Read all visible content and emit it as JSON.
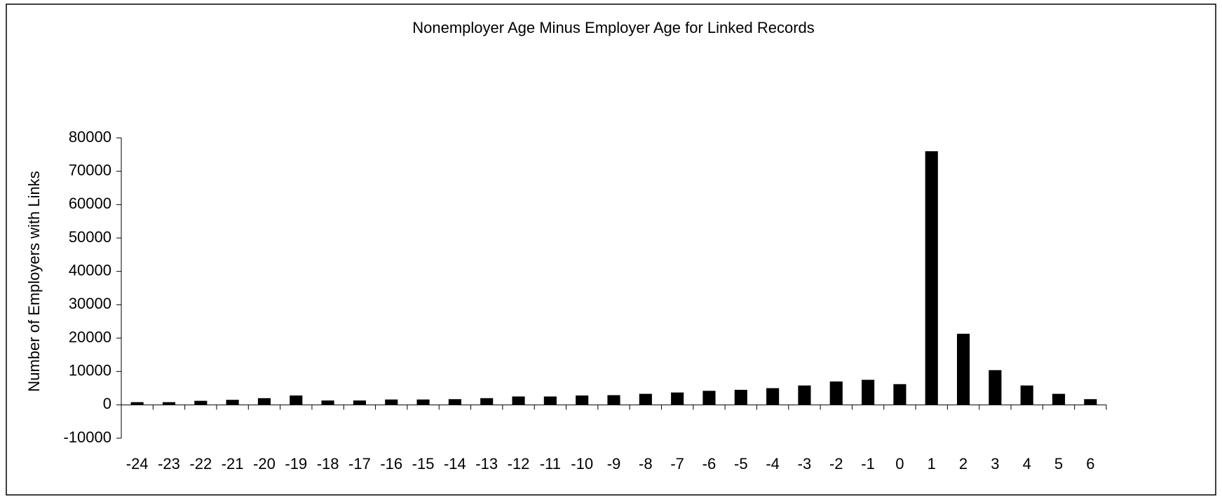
{
  "chart_data": {
    "type": "bar",
    "title": "Nonemployer Age Minus Employer Age for Linked Records",
    "y_label": "Number of Employers with Links",
    "categories": [
      "-24",
      "-23",
      "-22",
      "-21",
      "-20",
      "-19",
      "-18",
      "-17",
      "-16",
      "-15",
      "-14",
      "-13",
      "-12",
      "-11",
      "-10",
      "-9",
      "-8",
      "-7",
      "-6",
      "-5",
      "-4",
      "-3",
      "-2",
      "-1",
      "0",
      "1",
      "2",
      "3",
      "4",
      "5",
      "6"
    ],
    "values": [
      800,
      800,
      1200,
      1500,
      2000,
      2800,
      1300,
      1300,
      1600,
      1600,
      1700,
      2000,
      2500,
      2500,
      2800,
      2900,
      3300,
      3700,
      4200,
      4500,
      5000,
      5800,
      7000,
      7500,
      6200,
      76000,
      21300,
      10400,
      5800,
      3300,
      1700
    ],
    "color": "#000000",
    "ylim": [
      -10000,
      80000
    ],
    "yticks": [
      -10000,
      0,
      10000,
      20000,
      30000,
      40000,
      50000,
      60000,
      70000,
      80000
    ],
    "grid": false
  }
}
